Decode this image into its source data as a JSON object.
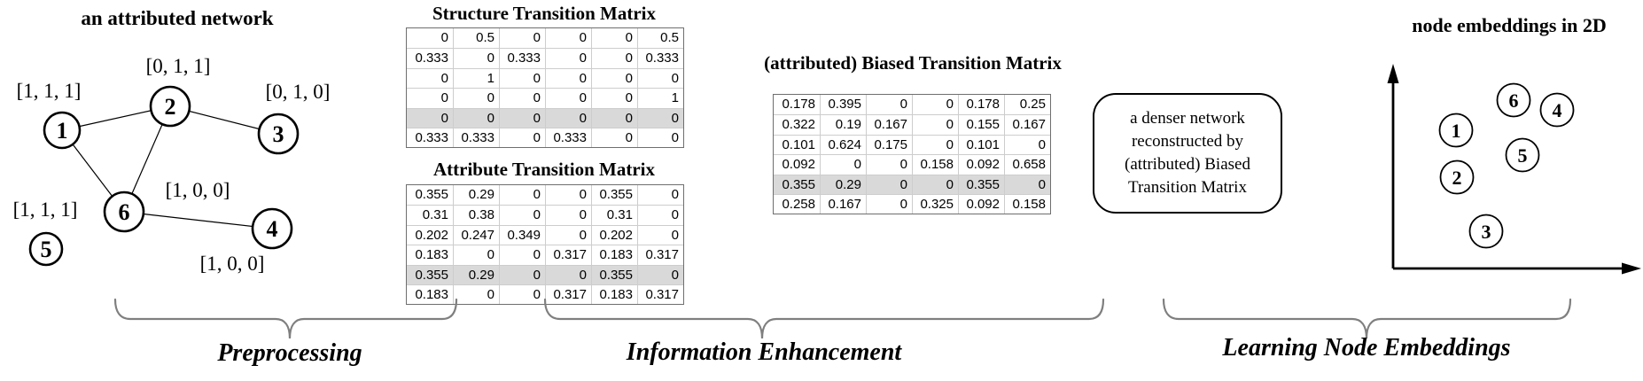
{
  "colors": {
    "matrix_shaded_row": "#d9d9d9",
    "brace_gray": "#7f7f7f",
    "matrix_border": "#6e6e6e"
  },
  "graph": {
    "title": "an attributed network",
    "nodes": [
      {
        "label": "1",
        "attributes": "[1, 1, 1]"
      },
      {
        "label": "2",
        "attributes": "[0, 1, 1]"
      },
      {
        "label": "3",
        "attributes": "[0, 1, 0]"
      },
      {
        "label": "4",
        "attributes": "[1, 0, 0]"
      },
      {
        "label": "5",
        "attributes": "[1, 1, 1]"
      },
      {
        "label": "6",
        "attributes": "[1, 0, 0]"
      }
    ],
    "edges": [
      [
        "1",
        "2"
      ],
      [
        "1",
        "6"
      ],
      [
        "2",
        "3"
      ],
      [
        "2",
        "6"
      ],
      [
        "6",
        "4"
      ]
    ]
  },
  "matrices": {
    "structure": {
      "title": "Structure Transition Matrix",
      "highlight_row": 4,
      "rows": [
        [
          "0",
          "0.5",
          "0",
          "0",
          "0",
          "0.5"
        ],
        [
          "0.333",
          "0",
          "0.333",
          "0",
          "0",
          "0.333"
        ],
        [
          "0",
          "1",
          "0",
          "0",
          "0",
          "0"
        ],
        [
          "0",
          "0",
          "0",
          "0",
          "0",
          "1"
        ],
        [
          "0",
          "0",
          "0",
          "0",
          "0",
          "0"
        ],
        [
          "0.333",
          "0.333",
          "0",
          "0.333",
          "0",
          "0"
        ]
      ]
    },
    "attribute": {
      "title": "Attribute Transition Matrix",
      "highlight_row": 4,
      "rows": [
        [
          "0.355",
          "0.29",
          "0",
          "0",
          "0.355",
          "0"
        ],
        [
          "0.31",
          "0.38",
          "0",
          "0",
          "0.31",
          "0"
        ],
        [
          "0.202",
          "0.247",
          "0.349",
          "0",
          "0.202",
          "0"
        ],
        [
          "0.183",
          "0",
          "0",
          "0.317",
          "0.183",
          "0.317"
        ],
        [
          "0.355",
          "0.29",
          "0",
          "0",
          "0.355",
          "0"
        ],
        [
          "0.183",
          "0",
          "0",
          "0.317",
          "0.183",
          "0.317"
        ]
      ]
    },
    "biased": {
      "title": "(attributed) Biased Transition Matrix",
      "highlight_row": 4,
      "rows": [
        [
          "0.178",
          "0.395",
          "0",
          "0",
          "0.178",
          "0.25"
        ],
        [
          "0.322",
          "0.19",
          "0.167",
          "0",
          "0.155",
          "0.167"
        ],
        [
          "0.101",
          "0.624",
          "0.175",
          "0",
          "0.101",
          "0"
        ],
        [
          "0.092",
          "0",
          "0",
          "0.158",
          "0.092",
          "0.658"
        ],
        [
          "0.355",
          "0.29",
          "0",
          "0",
          "0.355",
          "0"
        ],
        [
          "0.258",
          "0.167",
          "0",
          "0.325",
          "0.092",
          "0.158"
        ]
      ]
    }
  },
  "denser_box": {
    "lines": [
      "a denser network",
      "reconstructed by",
      "(attributed) Biased",
      "Transition Matrix"
    ]
  },
  "embeddings": {
    "title": "node embeddings in 2D",
    "points": [
      {
        "label": "1"
      },
      {
        "label": "2"
      },
      {
        "label": "3"
      },
      {
        "label": "4"
      },
      {
        "label": "5"
      },
      {
        "label": "6"
      }
    ]
  },
  "stages": [
    {
      "label": "Preprocessing"
    },
    {
      "label": "Information Enhancement"
    },
    {
      "label": "Learning Node Embeddings"
    }
  ]
}
